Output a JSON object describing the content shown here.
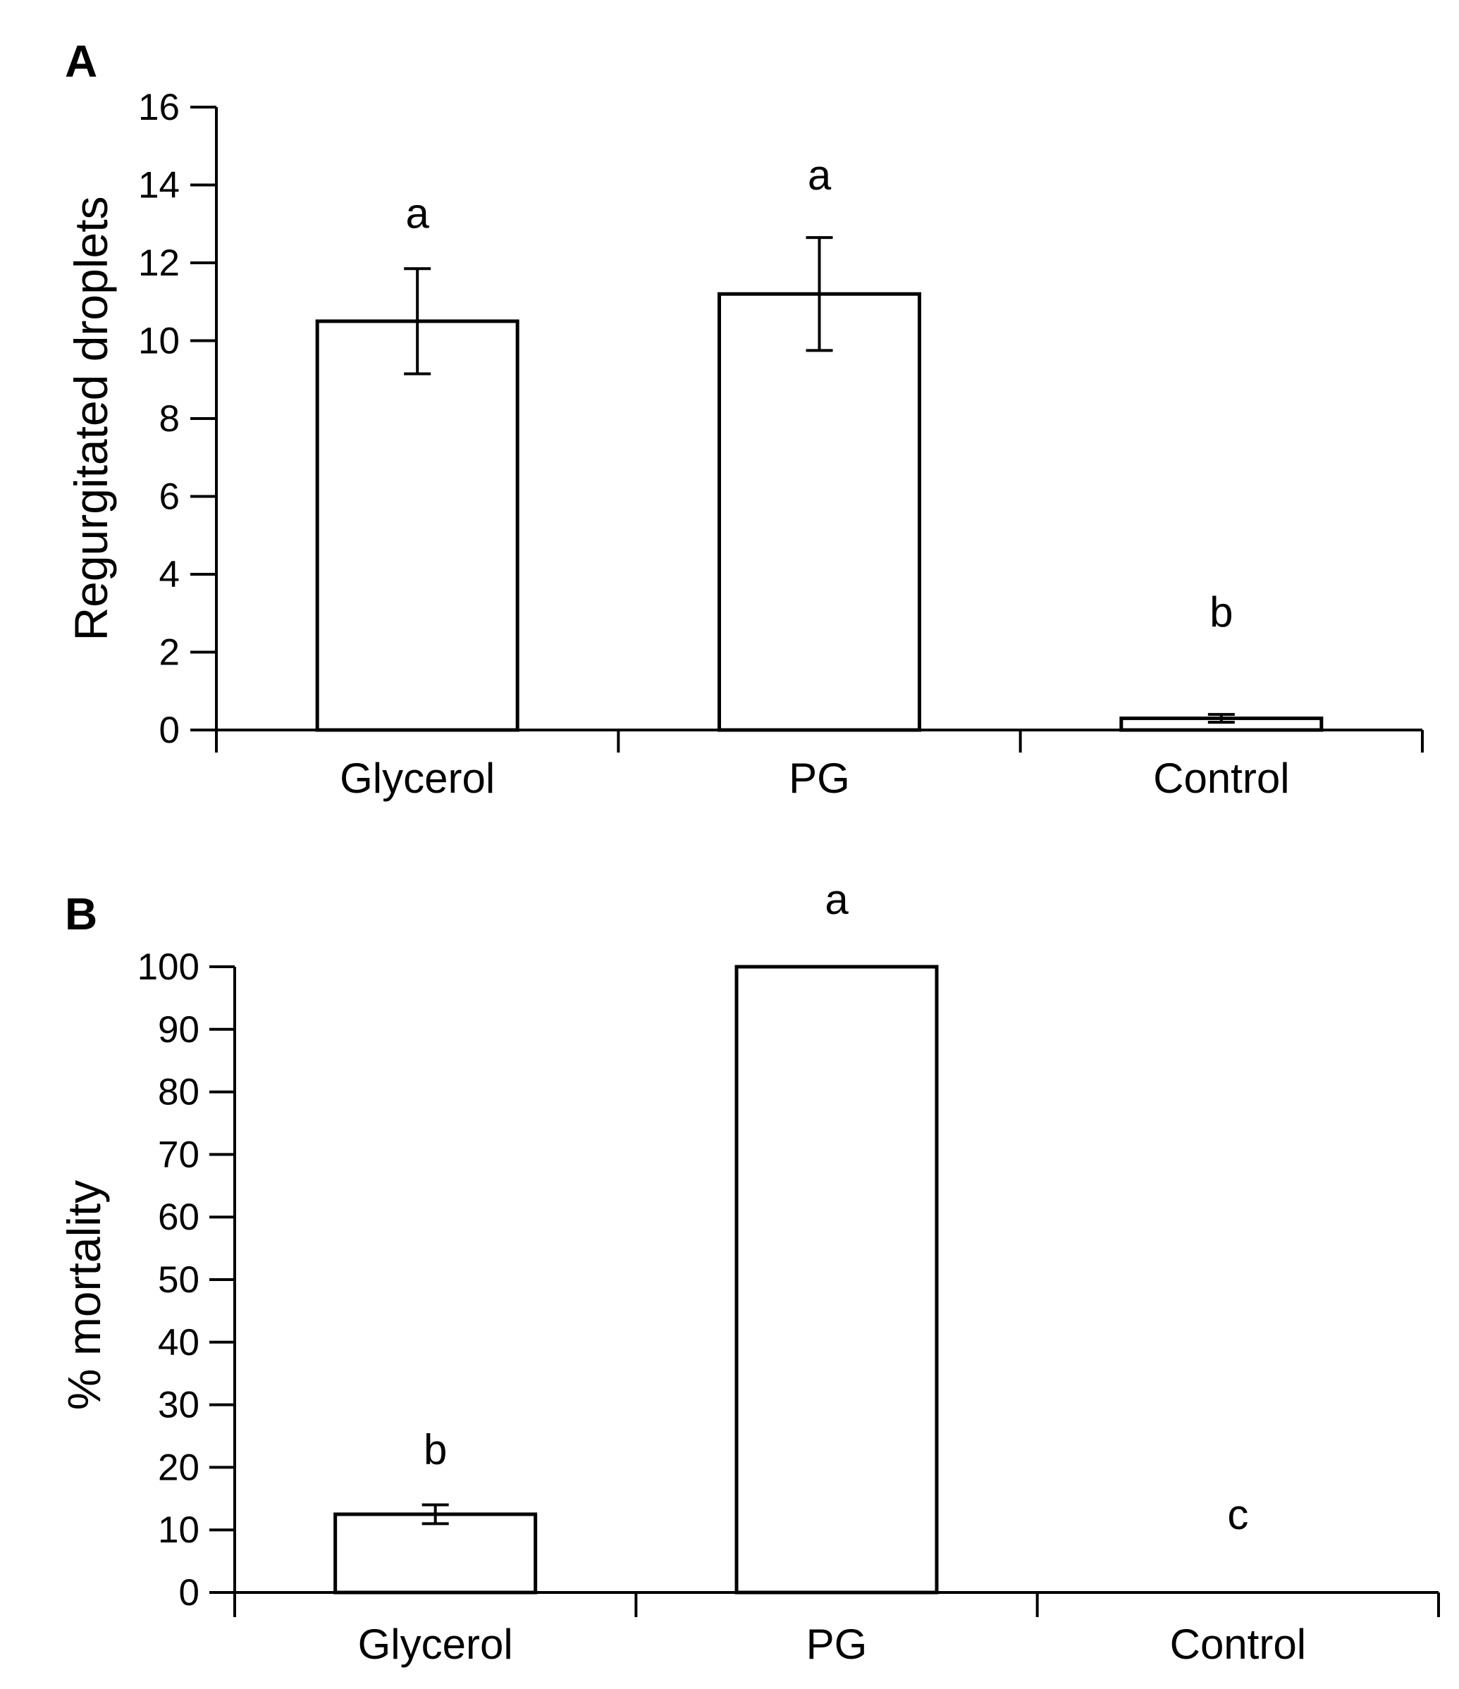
{
  "chart_data": [
    {
      "panel": "A",
      "type": "bar",
      "categories": [
        "Glycerol",
        "PG",
        "Control"
      ],
      "values": [
        10.5,
        11.2,
        0.3
      ],
      "errors": [
        1.35,
        1.45,
        0.1
      ],
      "significance": [
        "a",
        "a",
        "b"
      ],
      "ylabel": "Regurgitated droplets",
      "xlabel": "",
      "ylim": [
        0,
        16
      ],
      "yticks": [
        0,
        2,
        4,
        6,
        8,
        10,
        12,
        14,
        16
      ],
      "grid": false
    },
    {
      "panel": "B",
      "type": "bar",
      "categories": [
        "Glycerol",
        "PG",
        "Control"
      ],
      "values": [
        12.5,
        100,
        0
      ],
      "errors": [
        1.5,
        0,
        0
      ],
      "significance": [
        "b",
        "a",
        "c"
      ],
      "ylabel": "% mortality",
      "xlabel": "",
      "ylim": [
        0,
        100
      ],
      "yticks": [
        0,
        10,
        20,
        30,
        40,
        50,
        60,
        70,
        80,
        90,
        100
      ],
      "grid": false
    }
  ]
}
